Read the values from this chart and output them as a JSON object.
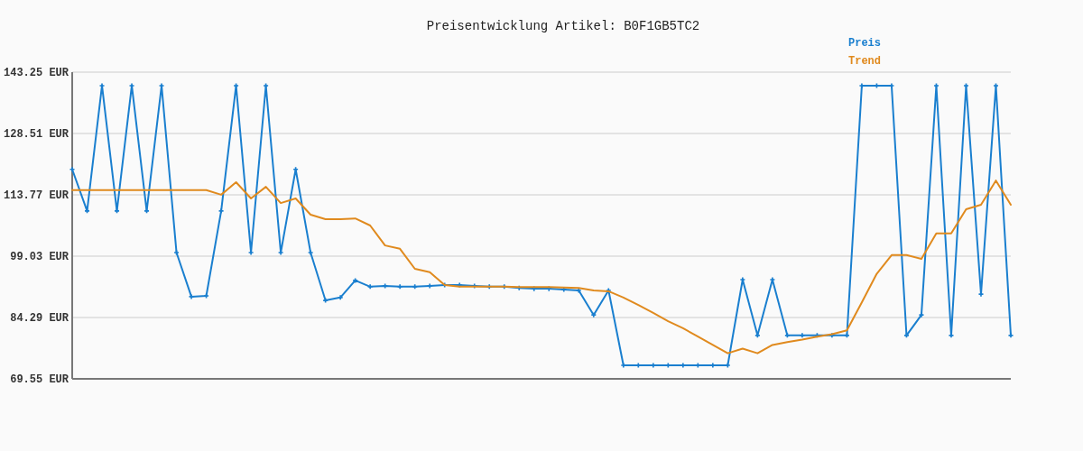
{
  "chart_data": {
    "type": "line",
    "title": "Preisentwicklung Artikel: B0F1GB5TC2",
    "categories": [
      null,
      null,
      null,
      null,
      null,
      null,
      null,
      null,
      null,
      null,
      null,
      null,
      null,
      null,
      null,
      null,
      null,
      null,
      null,
      null,
      null,
      null,
      null,
      null,
      null,
      null,
      null,
      null,
      null,
      null,
      null,
      null,
      null,
      null,
      null,
      null,
      null,
      null,
      null,
      null,
      null,
      null,
      null,
      null,
      null,
      null,
      null,
      null,
      null,
      null,
      null,
      null,
      null,
      null,
      null,
      null,
      null,
      null,
      null,
      null,
      null,
      null,
      null,
      null
    ],
    "series": [
      {
        "name": "Preis",
        "color": "#1a7fcf",
        "marker": "cross",
        "values": [
          119.9,
          109.9,
          140.0,
          109.9,
          140.0,
          109.9,
          140.0,
          99.9,
          89.3,
          89.5,
          109.9,
          140.0,
          99.9,
          140.0,
          99.9,
          119.9,
          99.9,
          88.4,
          89.1,
          93.2,
          91.7,
          91.9,
          91.7,
          91.7,
          91.9,
          92.1,
          92.1,
          91.9,
          91.7,
          91.7,
          91.4,
          91.2,
          91.2,
          91.0,
          90.8,
          84.9,
          90.8,
          72.8,
          72.8,
          72.8,
          72.8,
          72.8,
          72.8,
          72.8,
          72.8,
          93.4,
          80.0,
          93.4,
          80.0,
          80.0,
          80.0,
          80.0,
          80.0,
          140.0,
          140.0,
          140.0,
          80.0,
          84.9,
          140.0,
          80.0,
          140.0,
          89.9,
          140.0,
          80.0
        ]
      },
      {
        "name": "Trend",
        "color": "#e08a1e",
        "marker": "none",
        "values": [
          114.9,
          114.9,
          114.9,
          114.9,
          114.9,
          114.9,
          114.9,
          114.9,
          114.9,
          114.9,
          113.8,
          116.8,
          112.9,
          115.7,
          111.8,
          112.9,
          109.0,
          107.9,
          107.9,
          108.1,
          106.4,
          101.6,
          100.8,
          96.0,
          95.2,
          92.1,
          91.7,
          91.7,
          91.7,
          91.7,
          91.6,
          91.6,
          91.6,
          91.5,
          91.4,
          90.8,
          90.6,
          89.1,
          87.3,
          85.4,
          83.4,
          81.7,
          79.7,
          77.7,
          75.7,
          76.8,
          75.7,
          77.7,
          78.4,
          79.0,
          79.7,
          80.3,
          81.2,
          87.9,
          94.8,
          99.3,
          99.3,
          98.4,
          104.5,
          104.5,
          110.3,
          111.4,
          117.2,
          111.4
        ]
      }
    ],
    "ylim": [
      69.55,
      143.25
    ],
    "yticks": [
      {
        "value": 69.55,
        "label": "69.55 EUR"
      },
      {
        "value": 84.29,
        "label": "84.29 EUR"
      },
      {
        "value": 99.03,
        "label": "99.03 EUR"
      },
      {
        "value": 113.77,
        "label": "113.77 EUR"
      },
      {
        "value": 128.51,
        "label": "128.51 EUR"
      },
      {
        "value": 143.25,
        "label": "143.25 EUR"
      }
    ],
    "grid": "y",
    "legend": "top right",
    "line_style": "solid"
  }
}
